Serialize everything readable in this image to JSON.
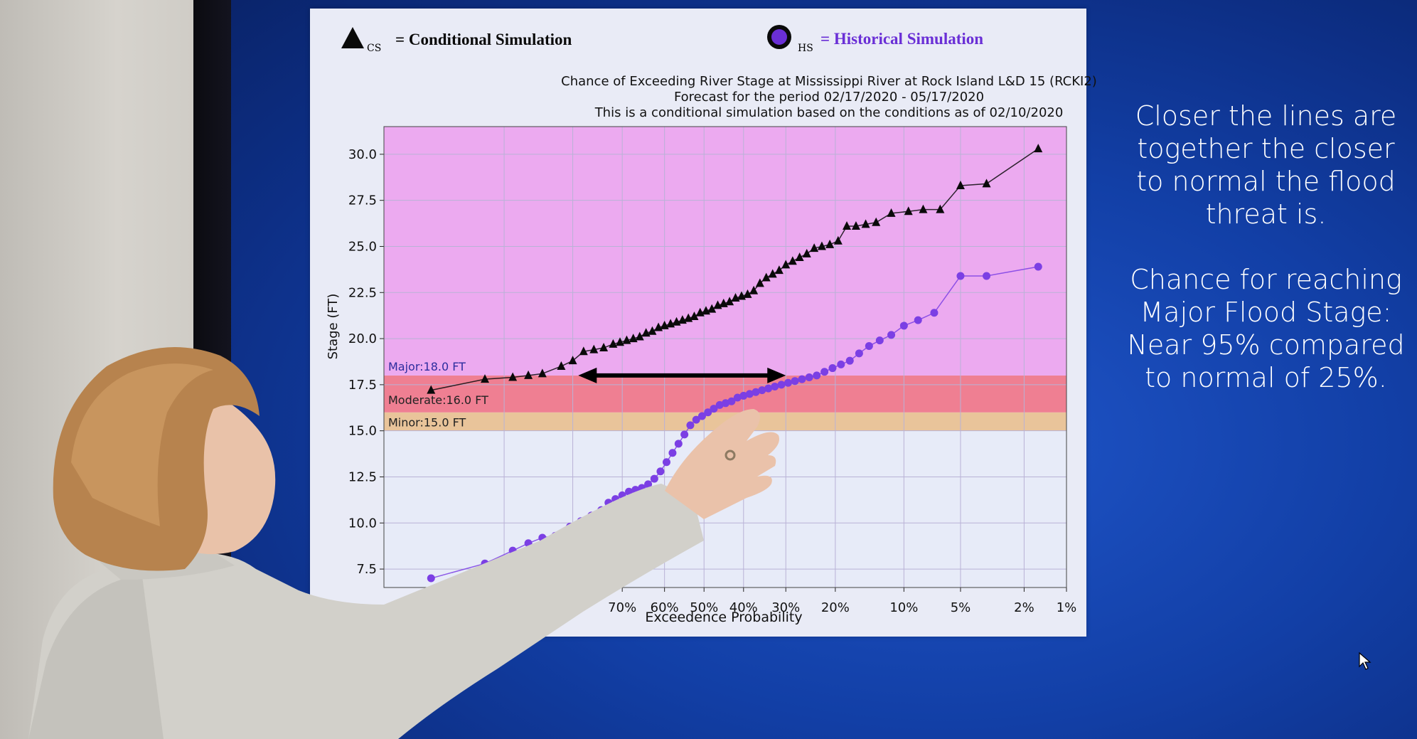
{
  "legend": {
    "cs_symbol": "CS",
    "cs_label": "= Conditional Simulation",
    "hs_symbol": "HS",
    "hs_label": "= Historical Simulation",
    "cs_color": "#0a0a0a",
    "hs_color": "#6a2fd6"
  },
  "note": {
    "line1": "Closer the lines are together the closer to normal the flood threat is.",
    "line2": "Chance for reaching Major Flood Stage: Near 95% compared to normal of 25%."
  },
  "chart_data": {
    "type": "scatter",
    "title_lines": [
      "Chance of Exceeding River Stage at Mississippi River at Rock Island L&D 15 (RCKI2)",
      "Forecast for the period 02/17/2020 - 05/17/2020",
      "This is a conditional simulation based on the conditions as of 02/10/2020"
    ],
    "xlabel": "Exceedence Probability",
    "ylabel": "Stage (FT)",
    "ylim": [
      6.5,
      31.5
    ],
    "xlim": [
      98,
      1
    ],
    "x_ticks": [
      "70%",
      "60%",
      "50%",
      "40%",
      "30%",
      "20%",
      "10%",
      "5%",
      "2%",
      "1%"
    ],
    "x_tick_values": [
      70,
      60,
      50,
      40,
      30,
      20,
      10,
      5,
      2,
      1
    ],
    "y_ticks": [
      "7.5",
      "10.0",
      "12.5",
      "15.0",
      "17.5",
      "20.0",
      "22.5",
      "25.0",
      "27.5",
      "30.0"
    ],
    "y_tick_values": [
      7.5,
      10,
      12.5,
      15,
      17.5,
      20,
      22.5,
      25,
      27.5,
      30
    ],
    "bands": [
      {
        "name": "Minor:15.0 FT",
        "from": 15.0,
        "to": 16.0,
        "color": "#e9c49a"
      },
      {
        "name": "Moderate:16.0 FT",
        "from": 16.0,
        "to": 18.0,
        "color": "#ef7f92"
      },
      {
        "name": "Major:18.0 FT",
        "from": 18.0,
        "to": 31.5,
        "color": "#ecaaf0"
      }
    ],
    "series": [
      {
        "name": "CS",
        "marker": "triangle",
        "color": "#0a0a0a",
        "points": [
          [
            96,
            17.2
          ],
          [
            92,
            17.8
          ],
          [
            89,
            17.9
          ],
          [
            87,
            18.0
          ],
          [
            85,
            18.1
          ],
          [
            82,
            18.5
          ],
          [
            80,
            18.8
          ],
          [
            78,
            19.3
          ],
          [
            76,
            19.4
          ],
          [
            74,
            19.5
          ],
          [
            72,
            19.7
          ],
          [
            70.5,
            19.8
          ],
          [
            69,
            19.9
          ],
          [
            67.5,
            20.0
          ],
          [
            66,
            20.1
          ],
          [
            64.5,
            20.3
          ],
          [
            63,
            20.4
          ],
          [
            61.5,
            20.6
          ],
          [
            60,
            20.7
          ],
          [
            58.5,
            20.8
          ],
          [
            57,
            20.9
          ],
          [
            55.5,
            21.0
          ],
          [
            54,
            21.1
          ],
          [
            52.5,
            21.2
          ],
          [
            51,
            21.4
          ],
          [
            49.5,
            21.5
          ],
          [
            48,
            21.6
          ],
          [
            46.5,
            21.8
          ],
          [
            45,
            21.9
          ],
          [
            43.5,
            22.0
          ],
          [
            42,
            22.2
          ],
          [
            40.5,
            22.3
          ],
          [
            39,
            22.4
          ],
          [
            37.5,
            22.6
          ],
          [
            36,
            23.0
          ],
          [
            34.5,
            23.3
          ],
          [
            33,
            23.5
          ],
          [
            31.5,
            23.7
          ],
          [
            30,
            24.0
          ],
          [
            28.5,
            24.2
          ],
          [
            27,
            24.4
          ],
          [
            25.5,
            24.6
          ],
          [
            24,
            24.9
          ],
          [
            22.5,
            25.0
          ],
          [
            21,
            25.1
          ],
          [
            19.5,
            25.3
          ],
          [
            18,
            26.1
          ],
          [
            16.5,
            26.1
          ],
          [
            15,
            26.2
          ],
          [
            13.5,
            26.3
          ],
          [
            11.5,
            26.8
          ],
          [
            9.5,
            26.9
          ],
          [
            8,
            27.0
          ],
          [
            6.5,
            27.0
          ],
          [
            5,
            28.3
          ],
          [
            3.5,
            28.4
          ],
          [
            1.6,
            30.3
          ]
        ]
      },
      {
        "name": "HS",
        "marker": "circle",
        "color": "#7b3fe4",
        "points": [
          [
            96,
            7.0
          ],
          [
            92,
            7.8
          ],
          [
            89,
            8.5
          ],
          [
            87,
            8.9
          ],
          [
            85,
            9.2
          ],
          [
            83,
            9.3
          ],
          [
            80.5,
            9.8
          ],
          [
            78.5,
            10.1
          ],
          [
            76.5,
            10.4
          ],
          [
            74.5,
            10.7
          ],
          [
            73,
            11.1
          ],
          [
            71.5,
            11.3
          ],
          [
            70,
            11.5
          ],
          [
            68.5,
            11.7
          ],
          [
            67,
            11.8
          ],
          [
            65.5,
            11.9
          ],
          [
            64,
            12.1
          ],
          [
            62.5,
            12.4
          ],
          [
            61,
            12.8
          ],
          [
            59.5,
            13.3
          ],
          [
            58,
            13.8
          ],
          [
            56.5,
            14.3
          ],
          [
            55,
            14.8
          ],
          [
            53.5,
            15.3
          ],
          [
            52,
            15.6
          ],
          [
            50.5,
            15.8
          ],
          [
            49,
            16.0
          ],
          [
            47.5,
            16.2
          ],
          [
            46,
            16.4
          ],
          [
            44.5,
            16.5
          ],
          [
            43,
            16.6
          ],
          [
            41.5,
            16.8
          ],
          [
            40,
            16.9
          ],
          [
            38.5,
            17.0
          ],
          [
            37,
            17.1
          ],
          [
            35.5,
            17.2
          ],
          [
            34,
            17.3
          ],
          [
            32.5,
            17.4
          ],
          [
            31,
            17.5
          ],
          [
            29.5,
            17.6
          ],
          [
            28,
            17.7
          ],
          [
            26.5,
            17.8
          ],
          [
            25,
            17.9
          ],
          [
            23.5,
            18.0
          ],
          [
            22,
            18.2
          ],
          [
            20.5,
            18.4
          ],
          [
            19,
            18.6
          ],
          [
            17.5,
            18.8
          ],
          [
            16,
            19.2
          ],
          [
            14.5,
            19.6
          ],
          [
            13,
            19.9
          ],
          [
            11.5,
            20.2
          ],
          [
            10,
            20.7
          ],
          [
            8.5,
            21.0
          ],
          [
            7,
            21.4
          ],
          [
            5,
            23.4
          ],
          [
            3.5,
            23.4
          ],
          [
            1.6,
            23.9
          ]
        ]
      }
    ],
    "annotation_arrow": {
      "x_from": 79,
      "x_to": 30,
      "y": 18.0
    }
  }
}
